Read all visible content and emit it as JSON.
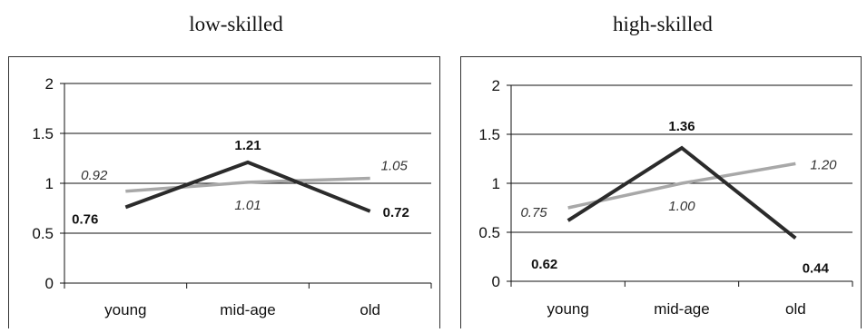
{
  "chart_data": [
    {
      "type": "line",
      "title": "low-skilled",
      "categories": [
        "young",
        "mid-age",
        "old"
      ],
      "ylim": [
        0,
        2
      ],
      "yticks": [
        "0",
        "0.5",
        "1",
        "1.5",
        "2"
      ],
      "grid": true,
      "series": [
        {
          "values": [
            0.76,
            1.21,
            0.72
          ],
          "labels": [
            "0.76",
            "1.21",
            "0.72"
          ],
          "color": "#2b2b2b",
          "style": "bold"
        },
        {
          "values": [
            0.92,
            1.01,
            1.05
          ],
          "labels": [
            "0.92",
            "1.01",
            "1.05"
          ],
          "color": "#a8a8a8",
          "style": "italic"
        }
      ]
    },
    {
      "type": "line",
      "title": "high-skilled",
      "categories": [
        "young",
        "mid-age",
        "old"
      ],
      "ylim": [
        0,
        2
      ],
      "yticks": [
        "0",
        "0.5",
        "1",
        "1.5",
        "2"
      ],
      "grid": true,
      "series": [
        {
          "values": [
            0.62,
            1.36,
            0.44
          ],
          "labels": [
            "0.62",
            "1.36",
            "0.44"
          ],
          "color": "#2b2b2b",
          "style": "bold"
        },
        {
          "values": [
            0.75,
            1.0,
            1.2
          ],
          "labels": [
            "0.75",
            "1.00",
            "1.20"
          ],
          "color": "#a8a8a8",
          "style": "italic"
        }
      ]
    }
  ]
}
